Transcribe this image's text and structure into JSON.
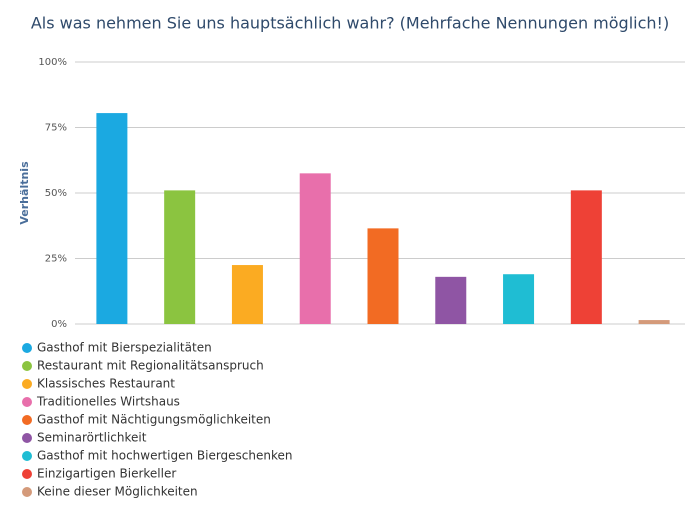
{
  "chart_data": {
    "type": "bar",
    "title": "Als was nehmen Sie uns hauptsächlich wahr? (Mehrfache Nennungen möglich!)",
    "y_label": "Verhältnis",
    "categories": [
      null
    ],
    "series": [
      {
        "name": "Gasthof mit Bierspezialitäten",
        "color": "#1ba9e1",
        "values": [
          80.5
        ]
      },
      {
        "name": "Restaurant mit Regionalitätsanspruch",
        "color": "#8bc440",
        "values": [
          51
        ]
      },
      {
        "name": "Klassisches Restaurant",
        "color": "#fbab22",
        "values": [
          22.5
        ]
      },
      {
        "name": "Traditionelles Wirtshaus",
        "color": "#e86fab",
        "values": [
          57.5
        ]
      },
      {
        "name": "Gasthof mit Nächtigungsmöglichkeiten",
        "color": "#f26b23",
        "values": [
          36.5
        ]
      },
      {
        "name": "Seminarörtlichkeit",
        "color": "#8f55a4",
        "values": [
          18
        ]
      },
      {
        "name": "Gasthof mit hochwertigen Biergeschenken",
        "color": "#1fbdd3",
        "values": [
          19
        ]
      },
      {
        "name": "Einzigartigen Bierkeller",
        "color": "#ee4136",
        "values": [
          51
        ]
      },
      {
        "name": "Keine dieser Möglichkeiten",
        "color": "#d49a7a",
        "values": [
          1.5
        ]
      }
    ],
    "ylim": [
      0,
      100
    ],
    "yticks": [
      {
        "value": 0,
        "label": "0%"
      },
      {
        "value": 25,
        "label": "25%"
      },
      {
        "value": 50,
        "label": "50%"
      },
      {
        "value": 75,
        "label": "75%"
      },
      {
        "value": 100,
        "label": "100%"
      }
    ],
    "grid": true,
    "legend": "bottom-left"
  }
}
